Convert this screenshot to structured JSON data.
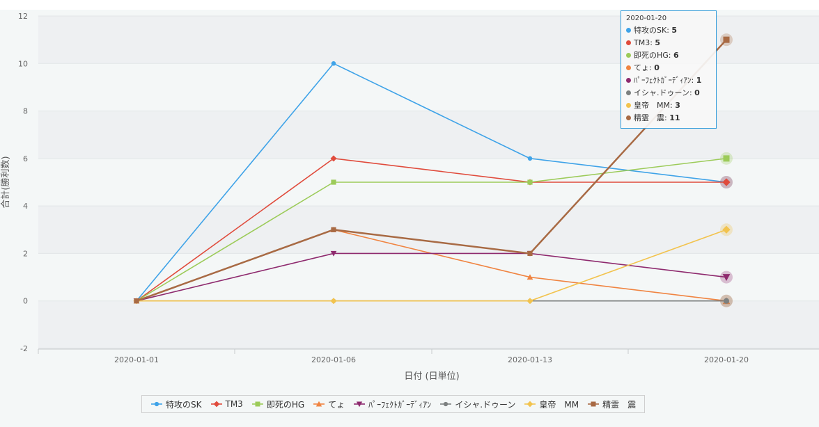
{
  "chart_data": {
    "type": "line",
    "categories": [
      "2020-01-01",
      "2020-01-06",
      "2020-01-13",
      "2020-01-20"
    ],
    "xlabel": "日付 (日単位)",
    "ylabel": "合計(勝利数)",
    "ylim": [
      -2,
      12
    ],
    "yticks": [
      -2,
      0,
      2,
      4,
      6,
      8,
      10,
      12
    ],
    "grid": "horizontal bands",
    "legend_position": "bottom-center",
    "series": [
      {
        "name": "特攻のSK",
        "values": [
          0,
          10,
          6,
          5
        ],
        "color": "#3fa3e8",
        "marker": "circle"
      },
      {
        "name": "TM3",
        "values": [
          0,
          6,
          5,
          5
        ],
        "color": "#e04b3c",
        "marker": "diamond"
      },
      {
        "name": "即死のHG",
        "values": [
          0,
          5,
          5,
          6
        ],
        "color": "#9ccb59",
        "marker": "square"
      },
      {
        "name": "てょ",
        "values": [
          0,
          3,
          1,
          0
        ],
        "color": "#f08441",
        "marker": "triangle"
      },
      {
        "name": "ﾊﾟｰﾌｪｸﾄｶﾞｰﾃﾞｨｱﾝ",
        "values": [
          0,
          2,
          2,
          1
        ],
        "color": "#8e2a6e",
        "marker": "triangle-down"
      },
      {
        "name": "イシャ.ドゥーン",
        "values": [
          0,
          0,
          0,
          0
        ],
        "color": "#7c8080",
        "marker": "circle"
      },
      {
        "name": "皇帝　MM",
        "values": [
          0,
          0,
          0,
          3
        ],
        "color": "#f2c34e",
        "marker": "diamond"
      },
      {
        "name": "精霊　震",
        "values": [
          0,
          3,
          2,
          11
        ],
        "color": "#a86a44",
        "marker": "square"
      }
    ]
  },
  "tooltip": {
    "date": "2020-01-20",
    "rows": [
      {
        "label": "特攻のSK:",
        "value": "5"
      },
      {
        "label": "TM3:",
        "value": "5"
      },
      {
        "label": "即死のHG:",
        "value": "6"
      },
      {
        "label": "てょ:",
        "value": "0"
      },
      {
        "label": "ﾊﾟｰﾌｪｸﾄｶﾞｰﾃﾞｨｱﾝ:",
        "value": "1"
      },
      {
        "label": "イシャ.ドゥーン:",
        "value": "0"
      },
      {
        "label": "皇帝　MM:",
        "value": "3"
      },
      {
        "label": "精霊　震:",
        "value": "11"
      }
    ]
  }
}
